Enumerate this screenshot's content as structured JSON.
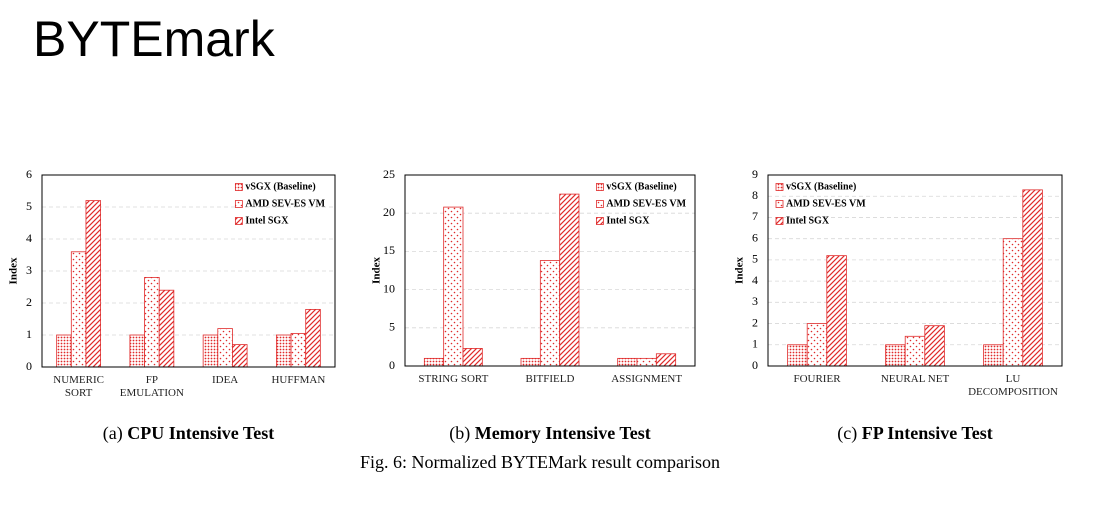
{
  "slide_title": "BYTEmark",
  "figure_caption": "Fig. 6: Normalized BYTEMark result comparison",
  "chart_data": [
    {
      "type": "bar",
      "label": "(a)",
      "title": "CPU Intensive Test",
      "y_label": "Index",
      "categories": [
        "NUMERIC\nSORT",
        "FP\nEMULATION",
        "IDEA",
        "HUFFMAN"
      ],
      "series": [
        {
          "name": "vSGX (Baseline)",
          "color": "#e02b2b",
          "pattern": "dense-dots",
          "values": [
            1,
            1,
            1,
            1
          ]
        },
        {
          "name": "AMD SEV-ES VM",
          "color": "#e02b2b",
          "pattern": "sparse-dots",
          "values": [
            3.6,
            2.8,
            1.2,
            1.05
          ]
        },
        {
          "name": "Intel SGX",
          "color": "#e02b2b",
          "pattern": "hatch",
          "values": [
            5.2,
            2.4,
            0.7,
            1.8
          ]
        }
      ],
      "ylim": [
        0,
        6
      ],
      "yticks": [
        0,
        1,
        2,
        3,
        4,
        5,
        6
      ],
      "grid": true,
      "legend": "upper right"
    },
    {
      "type": "bar",
      "label": "(b)",
      "title": "Memory Intensive Test",
      "y_label": "Index",
      "categories": [
        "STRING SORT",
        "BITFIELD",
        "ASSIGNMENT"
      ],
      "series": [
        {
          "name": "vSGX (Baseline)",
          "color": "#e02b2b",
          "pattern": "dense-dots",
          "values": [
            1,
            1,
            1
          ]
        },
        {
          "name": "AMD SEV-ES VM",
          "color": "#e02b2b",
          "pattern": "sparse-dots",
          "values": [
            20.8,
            13.8,
            1
          ]
        },
        {
          "name": "Intel SGX",
          "color": "#e02b2b",
          "pattern": "hatch",
          "values": [
            2.3,
            22.5,
            1.6
          ]
        }
      ],
      "ylim": [
        0,
        25
      ],
      "yticks": [
        0,
        5,
        10,
        15,
        20,
        25
      ],
      "grid": true,
      "legend": "upper right"
    },
    {
      "type": "bar",
      "label": "(c)",
      "title": "FP Intensive Test",
      "y_label": "Index",
      "categories": [
        "FOURIER",
        "NEURAL NET",
        "LU\nDECOMPOSITION"
      ],
      "series": [
        {
          "name": "vSGX (Baseline)",
          "color": "#e02b2b",
          "pattern": "dense-dots",
          "values": [
            1,
            1,
            1
          ]
        },
        {
          "name": "AMD SEV-ES VM",
          "color": "#e02b2b",
          "pattern": "sparse-dots",
          "values": [
            2,
            1.4,
            6
          ]
        },
        {
          "name": "Intel SGX",
          "color": "#e02b2b",
          "pattern": "hatch",
          "values": [
            5.2,
            1.9,
            8.3
          ]
        }
      ],
      "ylim": [
        0,
        9
      ],
      "yticks": [
        0,
        1,
        2,
        3,
        4,
        5,
        6,
        7,
        8,
        9
      ],
      "grid": true,
      "legend": "upper left"
    }
  ]
}
